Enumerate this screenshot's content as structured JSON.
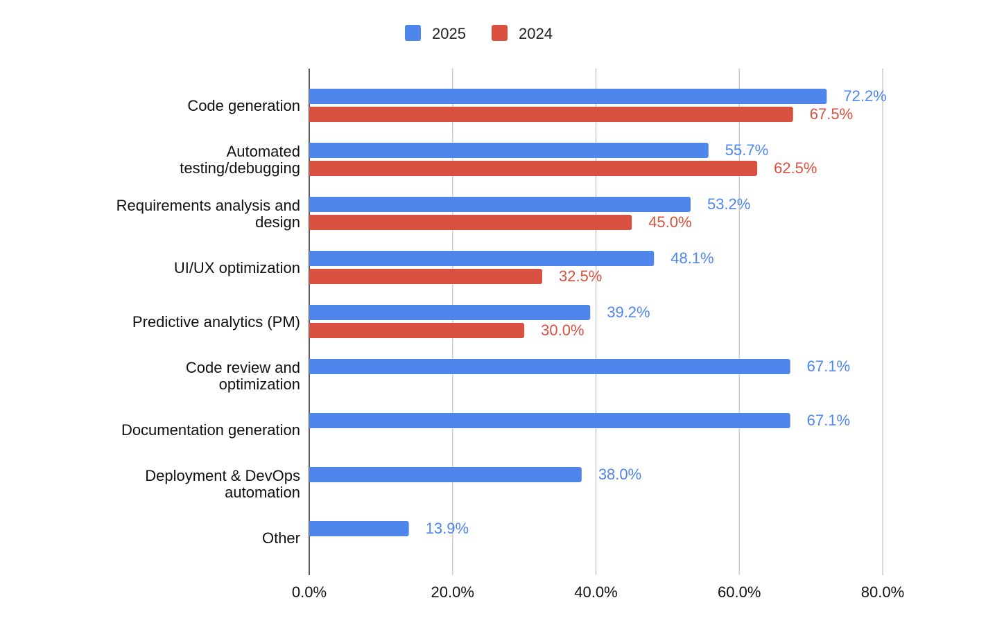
{
  "chart_data": {
    "type": "bar",
    "orientation": "horizontal",
    "categories": [
      [
        "Code generation"
      ],
      [
        "Automated",
        "testing/debugging"
      ],
      [
        "Requirements analysis and",
        "design"
      ],
      [
        "UI/UX optimization"
      ],
      [
        "Predictive analytics (PM)"
      ],
      [
        "Code review and",
        "optimization"
      ],
      [
        "Documentation generation"
      ],
      [
        "Deployment & DevOps",
        "automation"
      ],
      [
        "Other"
      ]
    ],
    "series": [
      {
        "name": "2025",
        "color": "#4f86ec",
        "values": [
          72.2,
          55.7,
          53.2,
          48.1,
          39.2,
          67.1,
          67.1,
          38.0,
          13.9
        ],
        "labels": [
          "72.2%",
          "55.7%",
          "53.2%",
          "48.1%",
          "39.2%",
          "67.1%",
          "67.1%",
          "38.0%",
          "13.9%"
        ]
      },
      {
        "name": "2024",
        "color": "#d85140",
        "values": [
          67.5,
          62.5,
          45.0,
          32.5,
          30.0,
          null,
          null,
          null,
          null
        ],
        "labels": [
          "67.5%",
          "62.5%",
          "45.0%",
          "32.5%",
          "30.0%",
          null,
          null,
          null,
          null
        ]
      }
    ],
    "xlim": [
      0,
      80
    ],
    "xticks": [
      0,
      20,
      40,
      60,
      80
    ],
    "xtick_labels": [
      "0.0%",
      "20.0%",
      "40.0%",
      "60.0%",
      "80.0%"
    ],
    "grid": "vertical",
    "legend": "top"
  }
}
